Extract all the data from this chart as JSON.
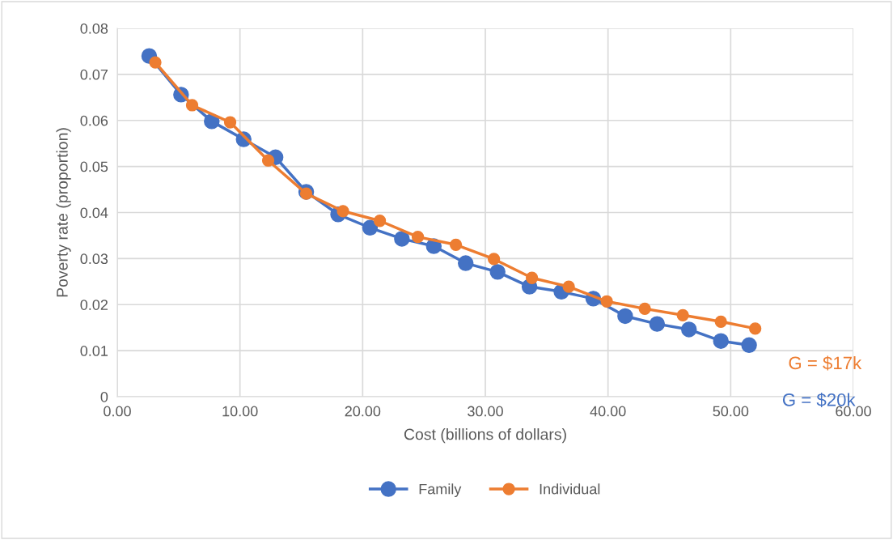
{
  "chart_data": {
    "type": "line",
    "xlabel": "Cost (billions of dollars)",
    "ylabel": "Poverty rate (proportion)",
    "series": [
      {
        "name": "Family",
        "color": "#4472c4",
        "x": [
          2.6,
          5.2,
          7.7,
          10.3,
          12.9,
          15.4,
          18.0,
          20.6,
          23.2,
          25.8,
          28.4,
          31.0,
          33.6,
          36.2,
          38.8,
          41.4,
          44.0,
          46.6,
          49.2,
          51.5
        ],
        "values": [
          0.074,
          0.0656,
          0.0598,
          0.0559,
          0.052,
          0.0445,
          0.0396,
          0.0367,
          0.0343,
          0.0327,
          0.029,
          0.0271,
          0.0239,
          0.0228,
          0.0213,
          0.0175,
          0.0158,
          0.0146,
          0.0121,
          0.0112
        ]
      },
      {
        "name": "Individual",
        "color": "#ed7d31",
        "x": [
          3.1,
          6.1,
          9.2,
          12.3,
          15.4,
          18.4,
          21.4,
          24.5,
          27.6,
          30.7,
          33.8,
          36.8,
          39.9,
          43.0,
          46.1,
          49.2,
          52.0
        ],
        "values": [
          0.0726,
          0.0633,
          0.0596,
          0.0513,
          0.0441,
          0.0403,
          0.0382,
          0.0347,
          0.033,
          0.0299,
          0.0258,
          0.0239,
          0.0207,
          0.0191,
          0.0177,
          0.0163,
          0.0148
        ]
      }
    ],
    "annotations": [
      "G = $20k",
      "G = $17k"
    ],
    "xlim": [
      0,
      60
    ],
    "xticks": [
      {
        "value": 0,
        "label": "0.00"
      },
      {
        "value": 10,
        "label": "10.00"
      },
      {
        "value": 20,
        "label": "20.00"
      },
      {
        "value": 30,
        "label": "30.00"
      },
      {
        "value": 40,
        "label": "40.00"
      },
      {
        "value": 50,
        "label": "50.00"
      },
      {
        "value": 60,
        "label": "60.00"
      }
    ],
    "ylim": [
      0,
      0.08
    ],
    "yticks": [
      0,
      0.01,
      0.02,
      0.03,
      0.04,
      0.05,
      0.06,
      0.07,
      0.08
    ],
    "grid": true,
    "legend": "bottom",
    "marker": "circle",
    "line_style": "solid"
  }
}
